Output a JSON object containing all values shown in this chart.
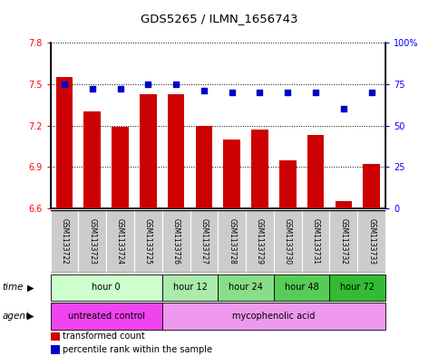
{
  "title": "GDS5265 / ILMN_1656743",
  "samples": [
    "GSM1133722",
    "GSM1133723",
    "GSM1133724",
    "GSM1133725",
    "GSM1133726",
    "GSM1133727",
    "GSM1133728",
    "GSM1133729",
    "GSM1133730",
    "GSM1133731",
    "GSM1133732",
    "GSM1133733"
  ],
  "bar_values": [
    7.55,
    7.3,
    7.19,
    7.43,
    7.43,
    7.2,
    7.1,
    7.17,
    6.95,
    7.13,
    6.65,
    6.92
  ],
  "dot_values": [
    75,
    72,
    72,
    75,
    75,
    71,
    70,
    70,
    70,
    70,
    60,
    70
  ],
  "ylim_left": [
    6.6,
    7.8
  ],
  "ylim_right": [
    0,
    100
  ],
  "yticks_left": [
    6.6,
    6.9,
    7.2,
    7.5,
    7.8
  ],
  "yticks_right": [
    0,
    25,
    50,
    75,
    100
  ],
  "bar_color": "#cc0000",
  "dot_color": "#0000cc",
  "bar_width": 0.6,
  "time_groups": [
    {
      "label": "hour 0",
      "indices": [
        0,
        1,
        2,
        3
      ],
      "color": "#ccffcc"
    },
    {
      "label": "hour 12",
      "indices": [
        4,
        5
      ],
      "color": "#aaeaaa"
    },
    {
      "label": "hour 24",
      "indices": [
        6,
        7
      ],
      "color": "#88dd88"
    },
    {
      "label": "hour 48",
      "indices": [
        8,
        9
      ],
      "color": "#55cc55"
    },
    {
      "label": "hour 72",
      "indices": [
        10,
        11
      ],
      "color": "#33bb33"
    }
  ],
  "agent_groups": [
    {
      "label": "untreated control",
      "indices": [
        0,
        1,
        2,
        3
      ],
      "color": "#ee44ee"
    },
    {
      "label": "mycophenolic acid",
      "indices": [
        4,
        5,
        6,
        7,
        8,
        9,
        10,
        11
      ],
      "color": "#ee99ee"
    }
  ],
  "legend_bar_label": "transformed count",
  "legend_dot_label": "percentile rank within the sample",
  "background_color": "white",
  "sample_bg_color": "#cccccc",
  "time_label": "time",
  "agent_label": "agent"
}
